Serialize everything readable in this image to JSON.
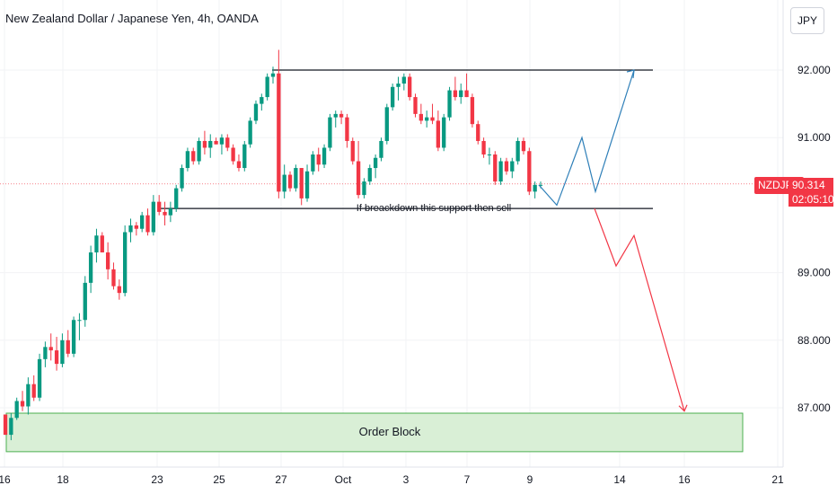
{
  "header": {
    "title": "New Zealand Dollar / Japanese Yen, 4h, OANDA"
  },
  "currency_button": {
    "label": "JPY"
  },
  "symbol_badge": {
    "label": "NZDJPY"
  },
  "last_price": {
    "value": "90.314",
    "countdown": "02:05:10"
  },
  "colors": {
    "up": "#089981",
    "down": "#f23645",
    "bullish_path": "#2e7fb8",
    "bearish_path": "#f23645",
    "order_block_fill": "#d9efd6",
    "order_block_border": "#4caf50"
  },
  "chart_data": {
    "type": "candlestick",
    "yaxis": {
      "ticks": [
        "92.000",
        "91.000",
        "89.000",
        "88.000",
        "87.000"
      ],
      "tick_values": [
        92,
        91,
        89,
        88,
        87
      ],
      "range": [
        86.35,
        92.95
      ]
    },
    "xaxis": {
      "ticks": [
        "16",
        "18",
        "23",
        "25",
        "27",
        "Oct",
        "3",
        "7",
        "9",
        "14",
        "16",
        "21"
      ]
    },
    "candles": [
      [
        86.9,
        86.9,
        86.6,
        86.6
      ],
      [
        86.6,
        86.92,
        86.52,
        86.85
      ],
      [
        86.85,
        87.15,
        86.82,
        87.1
      ],
      [
        87.1,
        87.25,
        86.95,
        87.02
      ],
      [
        87.02,
        87.45,
        86.9,
        87.35
      ],
      [
        87.35,
        87.48,
        87.1,
        87.15
      ],
      [
        87.15,
        87.8,
        87.1,
        87.72
      ],
      [
        87.72,
        87.98,
        87.6,
        87.9
      ],
      [
        87.9,
        88.1,
        87.7,
        87.85
      ],
      [
        87.85,
        88.05,
        87.55,
        87.65
      ],
      [
        87.65,
        88.1,
        87.6,
        88.0
      ],
      [
        88.0,
        88.15,
        87.75,
        87.8
      ],
      [
        87.8,
        88.35,
        87.75,
        88.3
      ],
      [
        88.3,
        88.4,
        88.0,
        88.3
      ],
      [
        88.3,
        88.95,
        88.2,
        88.85
      ],
      [
        88.85,
        89.4,
        88.7,
        89.3
      ],
      [
        89.3,
        89.65,
        89.15,
        89.55
      ],
      [
        89.55,
        89.6,
        89.3,
        89.3
      ],
      [
        89.3,
        89.45,
        88.9,
        89.05
      ],
      [
        89.05,
        89.15,
        88.75,
        88.8
      ],
      [
        88.8,
        88.9,
        88.6,
        88.7
      ],
      [
        88.7,
        89.7,
        88.65,
        89.6
      ],
      [
        89.6,
        89.8,
        89.45,
        89.7
      ],
      [
        89.7,
        89.75,
        89.55,
        89.65
      ],
      [
        89.65,
        89.9,
        89.6,
        89.85
      ],
      [
        89.85,
        89.95,
        89.55,
        89.6
      ],
      [
        89.6,
        90.15,
        89.55,
        90.05
      ],
      [
        90.05,
        90.15,
        89.85,
        89.9
      ],
      [
        89.9,
        90.05,
        89.7,
        89.85
      ],
      [
        89.85,
        90.05,
        89.75,
        89.95
      ],
      [
        89.95,
        90.3,
        89.9,
        90.25
      ],
      [
        90.25,
        90.6,
        90.2,
        90.55
      ],
      [
        90.55,
        90.85,
        90.5,
        90.8
      ],
      [
        90.8,
        90.85,
        90.6,
        90.65
      ],
      [
        90.65,
        91.0,
        90.6,
        90.95
      ],
      [
        90.95,
        91.1,
        90.75,
        90.85
      ],
      [
        90.85,
        91.05,
        90.7,
        90.95
      ],
      [
        90.95,
        91.0,
        90.9,
        90.9
      ],
      [
        90.9,
        91.05,
        90.75,
        91.0
      ],
      [
        91.0,
        91.05,
        90.8,
        90.85
      ],
      [
        90.85,
        90.9,
        90.6,
        90.65
      ],
      [
        90.65,
        90.75,
        90.5,
        90.55
      ],
      [
        90.55,
        90.95,
        90.5,
        90.9
      ],
      [
        90.9,
        91.3,
        90.85,
        91.25
      ],
      [
        91.25,
        91.55,
        91.2,
        91.5
      ],
      [
        91.5,
        91.65,
        91.4,
        91.6
      ],
      [
        91.6,
        91.95,
        91.55,
        91.9
      ],
      [
        91.9,
        92.05,
        91.8,
        91.95
      ],
      [
        91.95,
        92.3,
        90.1,
        90.2
      ],
      [
        90.2,
        90.6,
        90.1,
        90.45
      ],
      [
        90.45,
        90.5,
        90.2,
        90.25
      ],
      [
        90.25,
        90.6,
        90.2,
        90.55
      ],
      [
        90.55,
        90.5,
        90.0,
        90.1
      ],
      [
        90.1,
        90.6,
        90.05,
        90.5
      ],
      [
        90.5,
        90.8,
        90.45,
        90.75
      ],
      [
        90.75,
        90.85,
        90.5,
        90.6
      ],
      [
        90.6,
        90.9,
        90.55,
        90.85
      ],
      [
        90.85,
        91.35,
        90.8,
        91.3
      ],
      [
        91.3,
        91.4,
        91.15,
        91.35
      ],
      [
        91.35,
        91.4,
        91.2,
        91.3
      ],
      [
        91.3,
        91.35,
        90.85,
        90.95
      ],
      [
        90.95,
        91.0,
        90.6,
        90.65
      ],
      [
        90.65,
        90.95,
        90.1,
        90.15
      ],
      [
        90.15,
        90.4,
        90.1,
        90.35
      ],
      [
        90.35,
        90.6,
        90.3,
        90.55
      ],
      [
        90.55,
        90.75,
        90.4,
        90.7
      ],
      [
        90.7,
        91.0,
        90.65,
        90.95
      ],
      [
        90.95,
        91.5,
        90.9,
        91.45
      ],
      [
        91.45,
        91.8,
        91.4,
        91.75
      ],
      [
        91.75,
        91.9,
        91.55,
        91.8
      ],
      [
        91.8,
        91.95,
        91.7,
        91.9
      ],
      [
        91.9,
        91.95,
        91.55,
        91.6
      ],
      [
        91.6,
        91.65,
        91.3,
        91.35
      ],
      [
        91.35,
        91.5,
        91.2,
        91.25
      ],
      [
        91.25,
        91.4,
        91.15,
        91.3
      ],
      [
        91.3,
        91.5,
        91.2,
        91.25
      ],
      [
        91.25,
        91.4,
        90.8,
        90.85
      ],
      [
        90.85,
        91.35,
        90.8,
        91.3
      ],
      [
        91.3,
        91.75,
        91.25,
        91.7
      ],
      [
        91.7,
        91.9,
        91.55,
        91.6
      ],
      [
        91.6,
        91.8,
        91.5,
        91.7
      ],
      [
        91.7,
        91.95,
        91.6,
        91.6
      ],
      [
        91.6,
        91.65,
        91.15,
        91.2
      ],
      [
        91.2,
        91.25,
        90.9,
        90.95
      ],
      [
        90.95,
        91.0,
        90.7,
        90.75
      ],
      [
        90.75,
        90.85,
        90.6,
        90.75
      ],
      [
        90.75,
        90.8,
        90.3,
        90.35
      ],
      [
        90.35,
        90.7,
        90.3,
        90.65
      ],
      [
        90.65,
        90.7,
        90.45,
        90.5
      ],
      [
        90.5,
        90.7,
        90.4,
        90.65
      ],
      [
        90.65,
        91.0,
        90.6,
        90.95
      ],
      [
        90.95,
        91.0,
        90.75,
        90.8
      ],
      [
        90.8,
        90.85,
        90.15,
        90.2
      ],
      [
        90.2,
        90.35,
        90.1,
        90.3
      ],
      [
        90.3,
        90.35,
        90.25,
        90.3
      ]
    ],
    "resistance_level": 92.0,
    "support_level": 89.95,
    "annotations": {
      "support_label": "If breackdown this support then sell",
      "order_block_label": "Order Block"
    },
    "order_block": {
      "top": 86.92,
      "bottom": 86.35
    },
    "last_price_line": 90.314,
    "bullish_projection": [
      [
        90.3,
        0
      ],
      [
        90.0,
        1
      ],
      [
        91.0,
        2
      ],
      [
        90.2,
        3
      ],
      [
        92.0,
        4
      ]
    ],
    "bearish_projection": [
      [
        89.95,
        0
      ],
      [
        89.1,
        1
      ],
      [
        89.55,
        2
      ],
      [
        86.95,
        3
      ]
    ]
  }
}
